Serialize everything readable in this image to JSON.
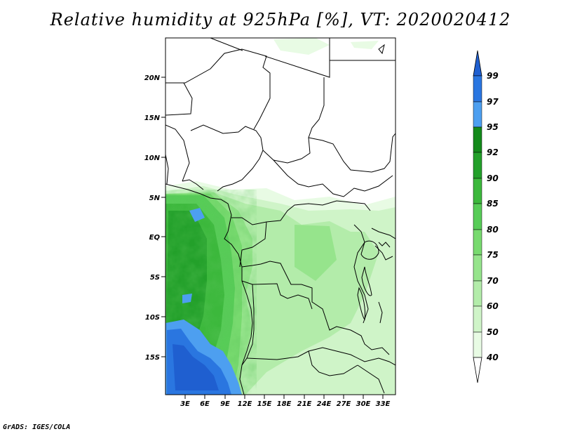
{
  "title": "Relative humidity at 925hPa [%], VT: 2020020412",
  "footer": "GrADS: IGES/COLA",
  "map": {
    "lat_labels": [
      "20N",
      "15N",
      "10N",
      "5N",
      "EQ",
      "5S",
      "10S",
      "15S"
    ],
    "lon_labels": [
      "3E",
      "6E",
      "9E",
      "12E",
      "15E",
      "18E",
      "21E",
      "24E",
      "27E",
      "30E",
      "33E"
    ]
  },
  "colorbar": {
    "levels": [
      "99",
      "97",
      "95",
      "92",
      "90",
      "85",
      "80",
      "75",
      "70",
      "60",
      "50",
      "40"
    ],
    "colors": {
      "above_99": "#1f5fd0",
      "97_99": "#2a76e0",
      "95_97": "#4d9ff0",
      "92_95": "#138a1a",
      "90_92": "#23a02a",
      "85_90": "#3cb83c",
      "80_85": "#57cc57",
      "75_80": "#78da6f",
      "70_75": "#96e48c",
      "60_70": "#b3ecaa",
      "50_60": "#cff4c8",
      "40_50": "#e8fbe4",
      "below_40": "#ffffff"
    }
  }
}
